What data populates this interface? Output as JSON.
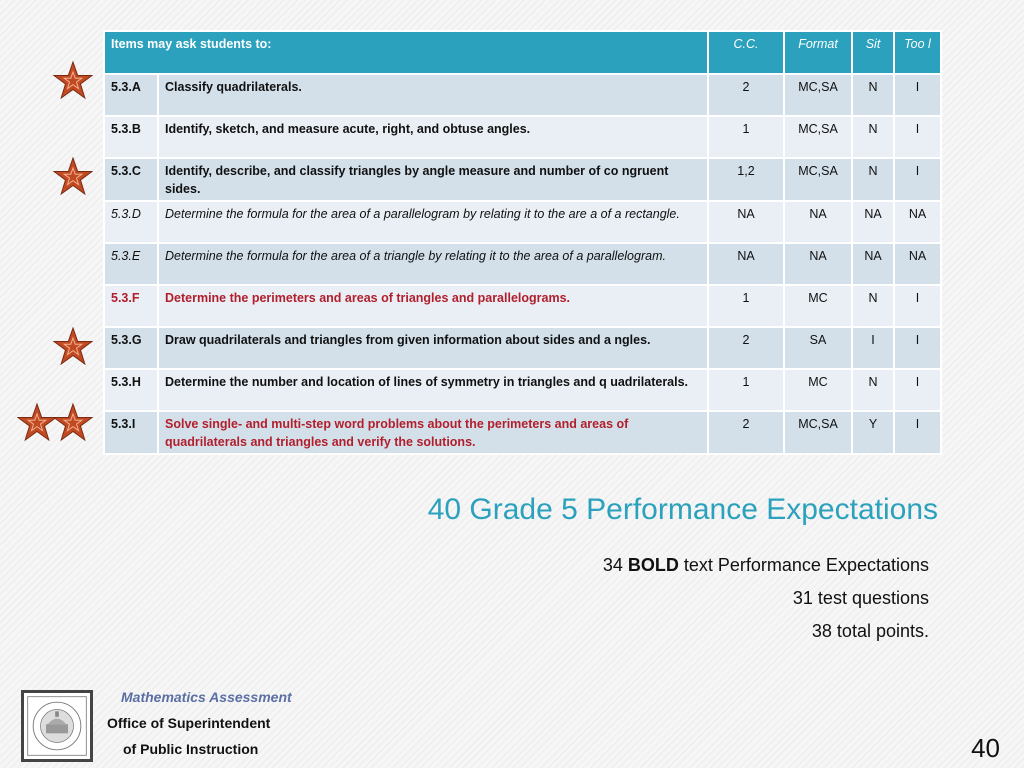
{
  "table": {
    "headers": {
      "items": "Items may ask students to:",
      "cc": "C.C.",
      "format": "Format",
      "sit": "Sit",
      "tool": "Too l"
    },
    "rows": [
      {
        "code": "5.3.A",
        "desc": "Classify quadrilaterals.",
        "cc": "2",
        "format": "MC,SA",
        "sit": "N",
        "tool": "I"
      },
      {
        "code": "5.3.B",
        "desc": "Identify, sketch, and measure acute, right, and obtuse angles.",
        "cc": "1",
        "format": "MC,SA",
        "sit": "N",
        "tool": "I"
      },
      {
        "code": "5.3.C",
        "desc": "Identify, describe, and classify triangles by angle measure and number of co ngruent sides.",
        "cc": "1,2",
        "format": "MC,SA",
        "sit": "N",
        "tool": "I"
      },
      {
        "code": "5.3.D",
        "desc": "Determine the formula for the area of a parallelogram by relating it to the are a of a rectangle.",
        "cc": "NA",
        "format": "NA",
        "sit": "NA",
        "tool": "NA"
      },
      {
        "code": "5.3.E",
        "desc": "Determine the formula for the area of a triangle by relating it to the area of a parallelogram.",
        "cc": "NA",
        "format": "NA",
        "sit": "NA",
        "tool": "NA"
      },
      {
        "code": "5.3.F",
        "desc": "Determine the perimeters and areas of triangles and parallelograms.",
        "cc": "1",
        "format": "MC",
        "sit": "N",
        "tool": "I"
      },
      {
        "code": "5.3.G",
        "desc": "Draw quadrilaterals and triangles from given information about sides and a ngles.",
        "cc": "2",
        "format": "SA",
        "sit": "I",
        "tool": "I"
      },
      {
        "code": "5.3.H",
        "desc": "Determine the number and location of lines of symmetry in triangles and q uadrilaterals.",
        "cc": "1",
        "format": "MC",
        "sit": "N",
        "tool": "I"
      },
      {
        "code": "5.3.I",
        "desc": "Solve single- and multi-step word problems about the perimeters and areas of quadrilaterals and triangles and verify the solutions.",
        "cc": "2",
        "format": "MC,SA",
        "sit": "Y",
        "tool": "I"
      }
    ]
  },
  "title": "40 Grade 5 Performance Expectations",
  "notes": {
    "line1_prefix": "34 ",
    "line1_bold": "BOLD",
    "line1_suffix": " text Performance Expectations",
    "line2": "31 test questions",
    "line3": "38 total points."
  },
  "footer": {
    "logo_text": "Mathematics Assessment",
    "office_line1": "Office of Superintendent",
    "office_line2": "of Public Instruction"
  },
  "page_number": "40",
  "colors": {
    "accent": "#2ba1bd",
    "red_text": "#b21e2c",
    "star": "#c24a22"
  }
}
